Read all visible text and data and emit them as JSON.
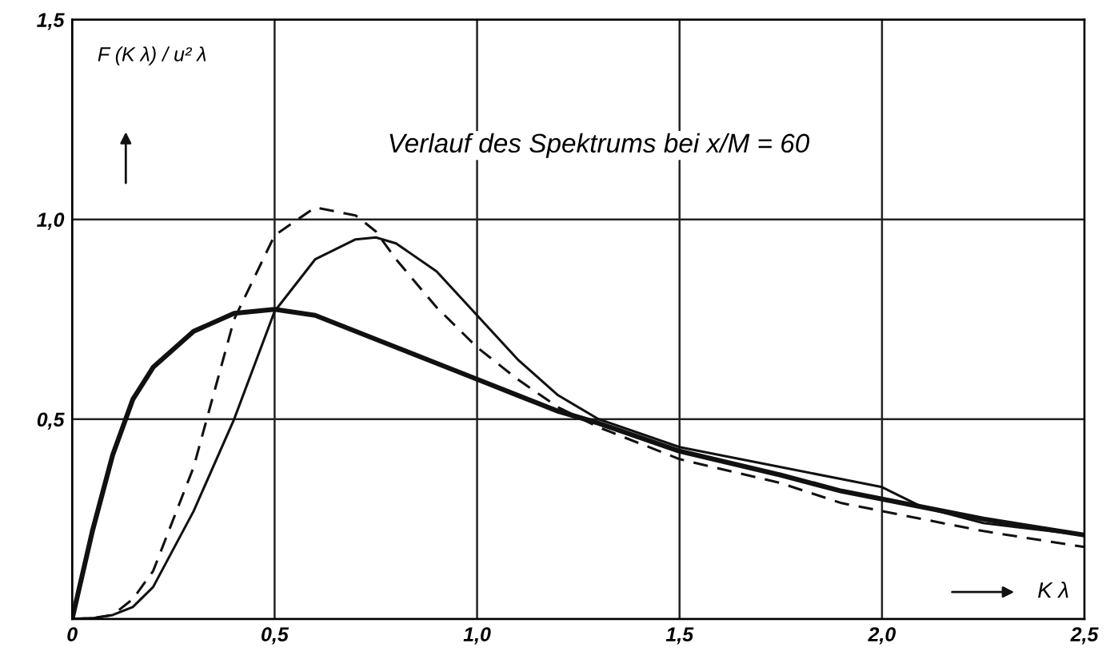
{
  "chart_data": {
    "type": "line",
    "title": "Verlauf des Spektrums bei x/M = 60",
    "ylabel": "F (K λ) / u² λ",
    "xlabel": "K λ",
    "x": [
      0,
      0.05,
      0.1,
      0.15,
      0.2,
      0.3,
      0.4,
      0.5,
      0.6,
      0.7,
      0.75,
      0.8,
      0.9,
      1.0,
      1.1,
      1.2,
      1.3,
      1.5,
      1.75,
      1.9,
      2.0,
      2.1,
      2.25,
      2.5
    ],
    "series": [
      {
        "color": "#111111",
        "line_style": "solid",
        "values": [
          0,
          0.22,
          0.41,
          0.55,
          0.63,
          0.72,
          0.765,
          0.775,
          0.76,
          0.72,
          0.7,
          0.68,
          0.64,
          0.6,
          0.56,
          0.52,
          0.49,
          0.42,
          0.36,
          0.32,
          0.3,
          0.28,
          0.25,
          0.21
        ]
      },
      {
        "color": "#111111",
        "line_style": "dashed",
        "values": [
          0,
          0.002,
          0.01,
          0.05,
          0.12,
          0.38,
          0.75,
          0.96,
          1.03,
          1.01,
          0.97,
          0.9,
          0.78,
          0.68,
          0.6,
          0.53,
          0.48,
          0.4,
          0.34,
          0.29,
          0.27,
          0.25,
          0.22,
          0.18
        ]
      },
      {
        "color": "#111111",
        "line_style": "solid",
        "values": [
          0,
          0.002,
          0.01,
          0.03,
          0.08,
          0.27,
          0.5,
          0.77,
          0.9,
          0.95,
          0.955,
          0.94,
          0.87,
          0.76,
          0.65,
          0.56,
          0.5,
          0.43,
          0.38,
          0.35,
          0.33,
          0.28,
          0.24,
          0.21
        ]
      }
    ],
    "xlim": [
      0,
      2.5
    ],
    "ylim": [
      0,
      1.5
    ],
    "xticks": [
      0,
      {
        "value": 0.5,
        "label": "0,5"
      },
      {
        "value": 1.0,
        "label": "1,0"
      },
      {
        "value": 1.5,
        "label": "1,5"
      },
      {
        "value": 2.0,
        "label": "2,0"
      },
      {
        "value": 2.5,
        "label": "2,5"
      }
    ],
    "yticks": [
      {
        "value": 0,
        "label": null
      },
      {
        "value": 0.5,
        "label": "0,5"
      },
      {
        "value": 1.0,
        "label": "1,0"
      },
      {
        "value": 1.5,
        "label": "1,5"
      }
    ],
    "grid": true,
    "legend": false,
    "marker": "none"
  }
}
